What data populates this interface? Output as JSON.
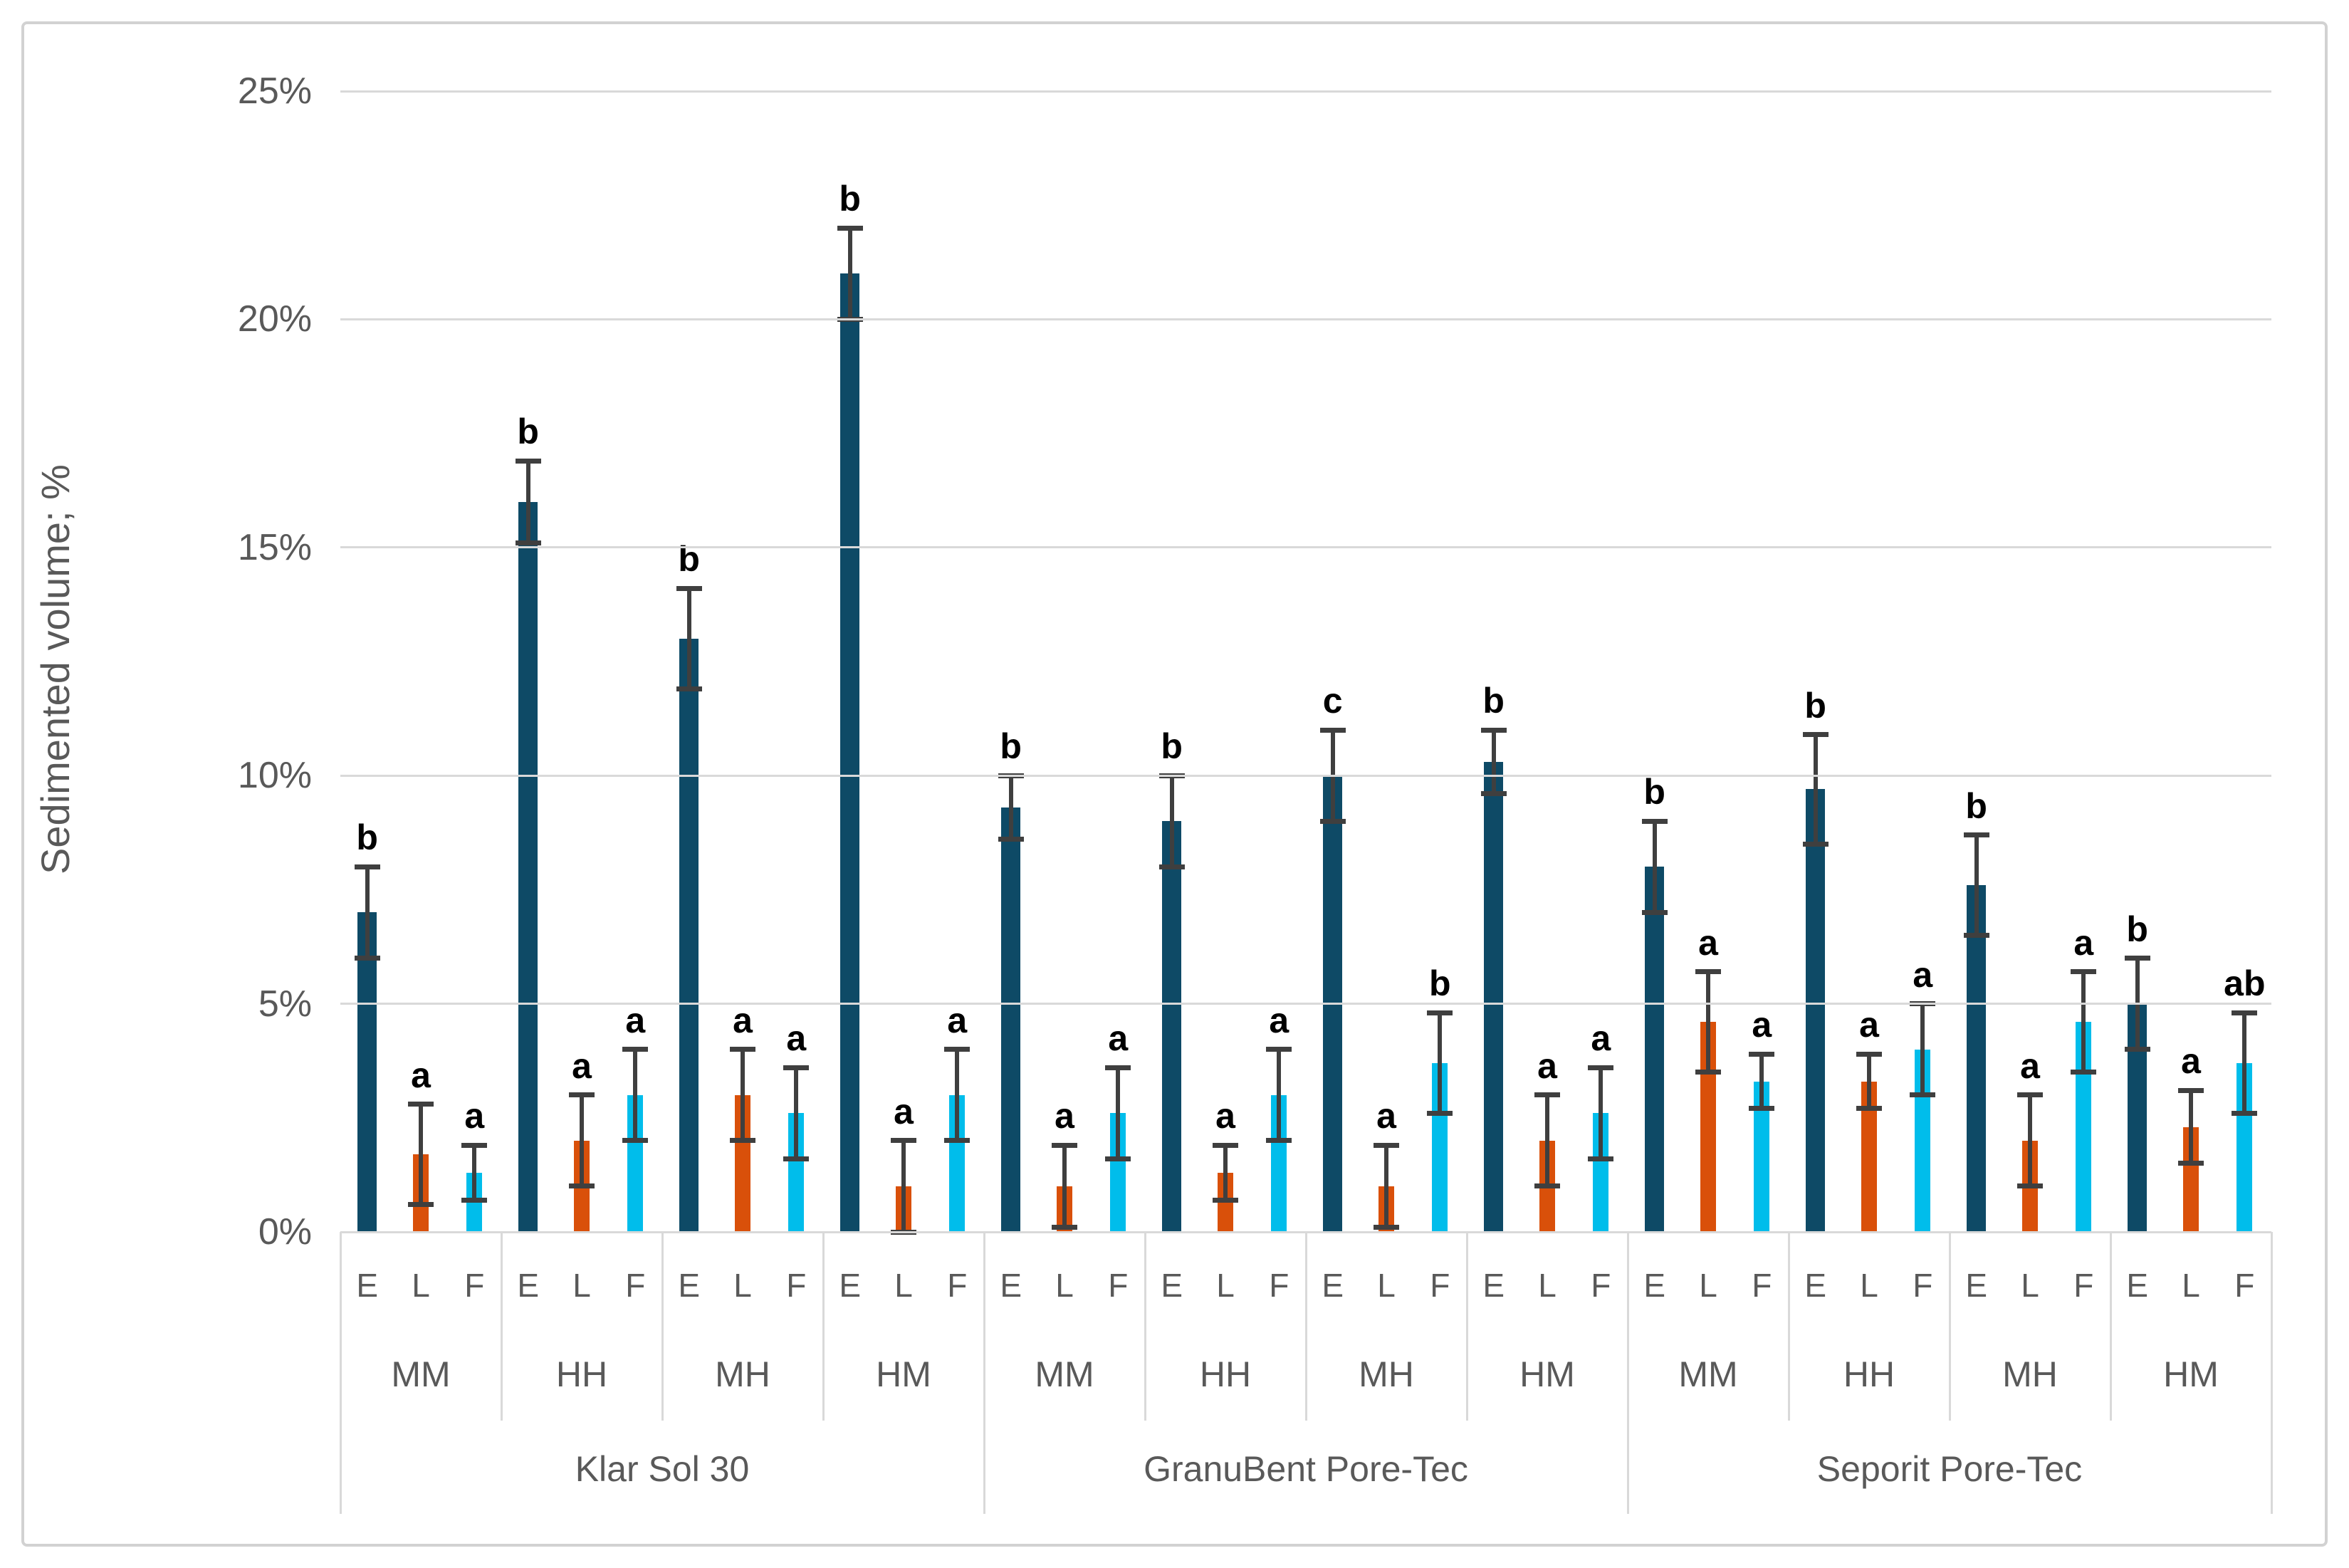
{
  "figure": {
    "y_axis_title": "Sedimented volume; %",
    "colors": {
      "bar_E": "#0E4A66",
      "bar_L": "#D9500A",
      "bar_F": "#00BDEB",
      "error_bar": "#3F3F3F",
      "gridline": "#D9D9D9",
      "axis_text": "#595959",
      "sig_letter": "#000000",
      "figure_border": "#D2D2D2"
    }
  },
  "chart_data": {
    "type": "bar",
    "title": "",
    "xlabel": "",
    "ylabel": "Sedimented volume; %",
    "ylim": [
      0,
      25
    ],
    "y_tick_labels": [
      "0%",
      "5%",
      "10%",
      "15%",
      "20%",
      "25%"
    ],
    "y_tick_values": [
      0,
      5,
      10,
      15,
      20,
      25
    ],
    "grid": true,
    "legend_position": "none",
    "error_bars": "plus-minus sd",
    "series_labels": [
      "E",
      "L",
      "F"
    ],
    "treatment_labels": [
      "MM",
      "HH",
      "MH",
      "HM"
    ],
    "products": [
      {
        "name": "Klar Sol 30",
        "groups": [
          {
            "label": "MM",
            "bars": [
              {
                "series": "E",
                "value": 7.0,
                "sd": 1.0,
                "letter": "b"
              },
              {
                "series": "L",
                "value": 1.7,
                "sd": 1.1,
                "letter": "a"
              },
              {
                "series": "F",
                "value": 1.3,
                "sd": 0.6,
                "letter": "a"
              }
            ]
          },
          {
            "label": "HH",
            "bars": [
              {
                "series": "E",
                "value": 16.0,
                "sd": 0.9,
                "letter": "b"
              },
              {
                "series": "L",
                "value": 2.0,
                "sd": 1.0,
                "letter": "a"
              },
              {
                "series": "F",
                "value": 3.0,
                "sd": 1.0,
                "letter": "a"
              }
            ]
          },
          {
            "label": "MH",
            "bars": [
              {
                "series": "E",
                "value": 13.0,
                "sd": 1.1,
                "letter": "b"
              },
              {
                "series": "L",
                "value": 3.0,
                "sd": 1.0,
                "letter": "a"
              },
              {
                "series": "F",
                "value": 2.6,
                "sd": 1.0,
                "letter": "a"
              }
            ]
          },
          {
            "label": "HM",
            "bars": [
              {
                "series": "E",
                "value": 21.0,
                "sd": 1.0,
                "letter": "b"
              },
              {
                "series": "L",
                "value": 1.0,
                "sd": 1.0,
                "letter": "a"
              },
              {
                "series": "F",
                "value": 3.0,
                "sd": 1.0,
                "letter": "a"
              }
            ]
          }
        ]
      },
      {
        "name": "GranuBent Pore-Tec",
        "groups": [
          {
            "label": "MM",
            "bars": [
              {
                "series": "E",
                "value": 9.3,
                "sd": 0.7,
                "letter": "b"
              },
              {
                "series": "L",
                "value": 1.0,
                "sd": 0.9,
                "letter": "a"
              },
              {
                "series": "F",
                "value": 2.6,
                "sd": 1.0,
                "letter": "a"
              }
            ]
          },
          {
            "label": "HH",
            "bars": [
              {
                "series": "E",
                "value": 9.0,
                "sd": 1.0,
                "letter": "b"
              },
              {
                "series": "L",
                "value": 1.3,
                "sd": 0.6,
                "letter": "a"
              },
              {
                "series": "F",
                "value": 3.0,
                "sd": 1.0,
                "letter": "a"
              }
            ]
          },
          {
            "label": "MH",
            "bars": [
              {
                "series": "E",
                "value": 10.0,
                "sd": 1.0,
                "letter": "c"
              },
              {
                "series": "L",
                "value": 1.0,
                "sd": 0.9,
                "letter": "a"
              },
              {
                "series": "F",
                "value": 3.7,
                "sd": 1.1,
                "letter": "b"
              }
            ]
          },
          {
            "label": "HM",
            "bars": [
              {
                "series": "E",
                "value": 10.3,
                "sd": 0.7,
                "letter": "b"
              },
              {
                "series": "L",
                "value": 2.0,
                "sd": 1.0,
                "letter": "a"
              },
              {
                "series": "F",
                "value": 2.6,
                "sd": 1.0,
                "letter": "a"
              }
            ]
          }
        ]
      },
      {
        "name": "Seporit Pore-Tec",
        "groups": [
          {
            "label": "MM",
            "bars": [
              {
                "series": "E",
                "value": 8.0,
                "sd": 1.0,
                "letter": "b"
              },
              {
                "series": "L",
                "value": 4.6,
                "sd": 1.1,
                "letter": "a"
              },
              {
                "series": "F",
                "value": 3.3,
                "sd": 0.6,
                "letter": "a"
              }
            ]
          },
          {
            "label": "HH",
            "bars": [
              {
                "series": "E",
                "value": 9.7,
                "sd": 1.2,
                "letter": "b"
              },
              {
                "series": "L",
                "value": 3.3,
                "sd": 0.6,
                "letter": "a"
              },
              {
                "series": "F",
                "value": 4.0,
                "sd": 1.0,
                "letter": "a"
              }
            ]
          },
          {
            "label": "MH",
            "bars": [
              {
                "series": "E",
                "value": 7.6,
                "sd": 1.1,
                "letter": "b"
              },
              {
                "series": "L",
                "value": 2.0,
                "sd": 1.0,
                "letter": "a"
              },
              {
                "series": "F",
                "value": 4.6,
                "sd": 1.1,
                "letter": "a"
              }
            ]
          },
          {
            "label": "HM",
            "bars": [
              {
                "series": "E",
                "value": 5.0,
                "sd": 1.0,
                "letter": "b"
              },
              {
                "series": "L",
                "value": 2.3,
                "sd": 0.8,
                "letter": "a"
              },
              {
                "series": "F",
                "value": 3.7,
                "sd": 1.1,
                "letter": "ab"
              }
            ]
          }
        ]
      }
    ]
  }
}
